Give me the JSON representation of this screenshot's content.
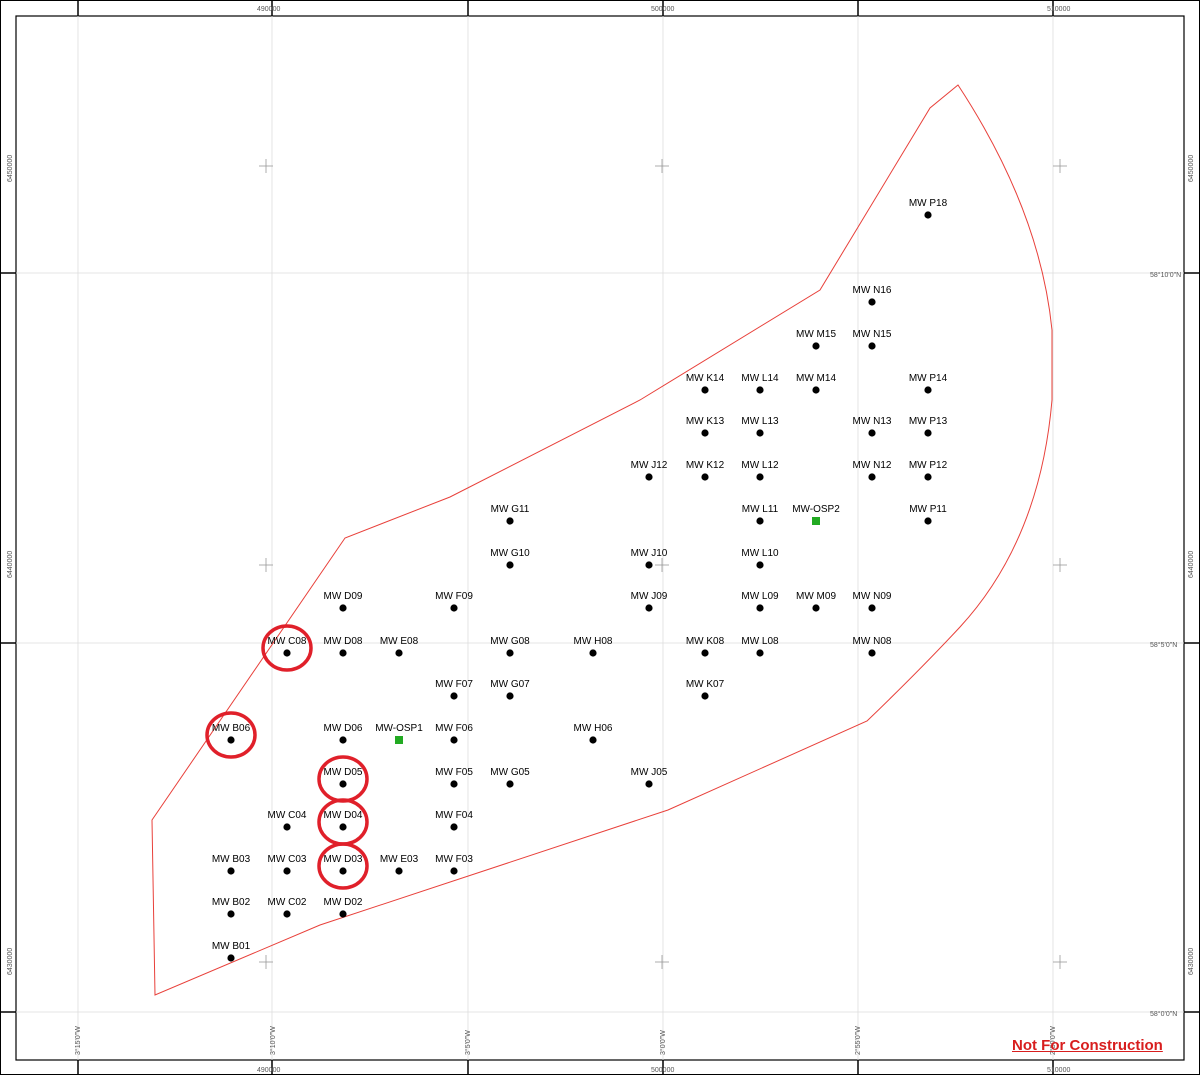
{
  "colors": {
    "boundary": "#e8403a",
    "turbine": "#000000",
    "substation": "#22aa22",
    "highlight": "#e0202a",
    "notice": "#d81e1e",
    "grid": "#dddddd"
  },
  "notice_text": "Not For Construction",
  "easting_labels": [
    "490000",
    "500000",
    "510000"
  ],
  "northing_labels": [
    "6450000",
    "6440000",
    "6430000"
  ],
  "longitude_labels": [
    "3°15'0\"W",
    "3°10'0\"W",
    "3°5'0\"W",
    "3°0'0\"W",
    "2°55'0\"W",
    "2°50'0\"W"
  ],
  "latitude_labels": [
    "58°10'0\"N",
    "58°5'0\"N",
    "58°0'0\"N"
  ],
  "turbines": [
    "MW P18",
    "MW N16",
    "MW M15",
    "MW N15",
    "MW K14",
    "MW L14",
    "MW M14",
    "MW P14",
    "MW K13",
    "MW L13",
    "MW N13",
    "MW P13",
    "MW J12",
    "MW K12",
    "MW L12",
    "MW N12",
    "MW P12",
    "MW G11",
    "MW L11",
    "MW P11",
    "MW G10",
    "MW J10",
    "MW L10",
    "MW D09",
    "MW F09",
    "MW J09",
    "MW L09",
    "MW M09",
    "MW N09",
    "MW C08",
    "MW D08",
    "MW E08",
    "MW G08",
    "MW H08",
    "MW K08",
    "MW L08",
    "MW N08",
    "MW F07",
    "MW G07",
    "MW K07",
    "MW B06",
    "MW D06",
    "MW F06",
    "MW H06",
    "MW D05",
    "MW F05",
    "MW G05",
    "MW J05",
    "MW C04",
    "MW D04",
    "MW F04",
    "MW B03",
    "MW C03",
    "MW D03",
    "MW E03",
    "MW F03",
    "MW B02",
    "MW C02",
    "MW D02",
    "MW B01"
  ],
  "substations": [
    "MW-OSP1",
    "MW-OSP2"
  ],
  "highlighted_turbines": [
    "MW C08",
    "MW B06",
    "MW D05",
    "MW D04",
    "MW D03"
  ]
}
